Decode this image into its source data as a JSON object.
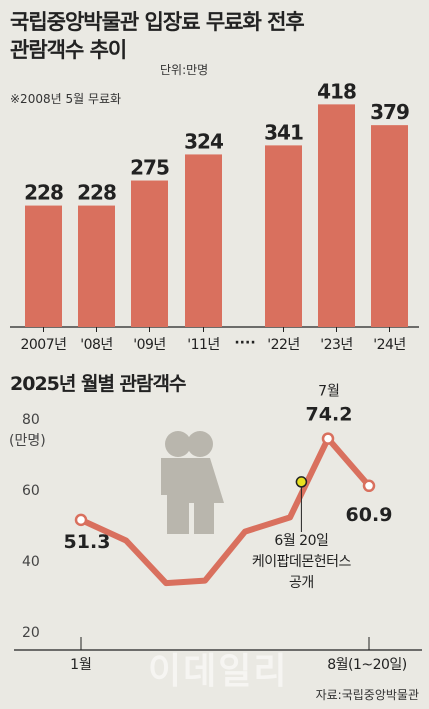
{
  "header": {
    "title_line1": "국립중앙박물관 입장료 무료화 전후",
    "title_line2": "관람객수 추이",
    "unit": "단위:만명",
    "note": "※2008년 5월 무료화"
  },
  "line_section": {
    "title": "2025년 월별 관람객수",
    "unit": "(만명)",
    "annotation_lines": [
      "6월 20일",
      "케이팝데몬헌터스",
      "공개"
    ],
    "icon": "family-icon"
  },
  "source": "자료:국립중앙박물관",
  "watermark": "이데일리",
  "colors": {
    "bar": "#d9705e",
    "line": "#d9705e",
    "marker": "#e8e020",
    "background": "#eae9e3"
  },
  "chart_data": [
    {
      "type": "bar",
      "categories": [
        "2007년",
        "'08년",
        "'09년",
        "'11년",
        "'22년",
        "'23년",
        "'24년"
      ],
      "values": [
        228,
        228,
        275,
        324,
        341,
        418,
        379
      ],
      "axis_break": "····",
      "unit": "만명"
    },
    {
      "type": "line",
      "title": "2025년 월별 관람객수",
      "x": [
        1,
        2,
        3,
        4,
        5,
        6,
        7,
        8
      ],
      "y": [
        51.3,
        45.5,
        33.5,
        34.2,
        48.0,
        52.0,
        74.2,
        60.9
      ],
      "x_tick_labels": [
        {
          "x": 1,
          "label": "1월"
        },
        {
          "x": 8,
          "label": "8월(1~20일)"
        }
      ],
      "value_labels": [
        {
          "x": 1,
          "label": "51.3"
        },
        {
          "x": 7,
          "label": "74.2",
          "header": "7월"
        },
        {
          "x": 8,
          "label": "60.9"
        }
      ],
      "highlight": {
        "x": 6.3,
        "y": 62.0
      },
      "ylabel": "(만명)",
      "yticks": [
        20,
        40,
        60,
        80
      ],
      "ylim": [
        20,
        80
      ]
    }
  ]
}
